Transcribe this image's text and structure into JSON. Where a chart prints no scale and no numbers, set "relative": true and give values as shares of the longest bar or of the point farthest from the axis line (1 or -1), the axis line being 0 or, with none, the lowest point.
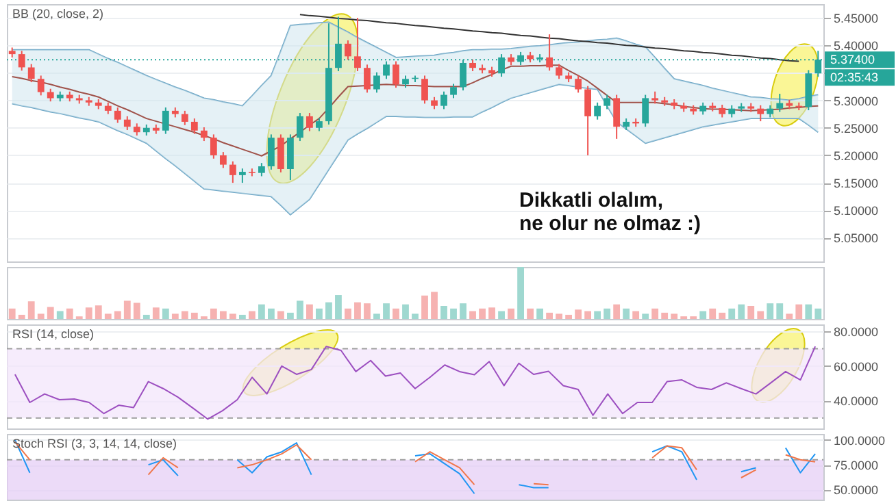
{
  "chart_data": [
    {
      "type": "candlestick",
      "title": "BB (20, close, 2)",
      "categories": [
        null,
        null,
        null,
        null,
        null,
        null,
        null,
        null,
        null,
        null,
        null,
        null,
        null,
        null,
        null,
        null,
        null,
        null,
        null,
        null,
        null,
        null,
        null,
        null,
        null,
        null,
        null,
        null,
        null,
        null,
        null,
        null,
        null,
        null,
        null,
        null,
        null,
        null,
        null,
        null,
        null,
        null,
        null,
        null,
        null,
        null,
        null,
        null,
        null,
        null,
        null,
        null,
        null,
        null,
        null,
        null,
        null,
        null,
        null,
        null,
        null,
        null,
        null,
        null,
        null,
        null,
        null,
        null,
        null,
        null,
        null,
        null,
        null,
        null,
        null,
        null,
        null,
        null,
        null,
        null,
        null,
        null,
        null,
        null,
        null
      ],
      "ohlc": [
        [
          5.39,
          5.396,
          5.378,
          5.384
        ],
        [
          5.384,
          5.39,
          5.354,
          5.36
        ],
        [
          5.36,
          5.366,
          5.333,
          5.339
        ],
        [
          5.339,
          5.345,
          5.309,
          5.315
        ],
        [
          5.315,
          5.321,
          5.298,
          5.304
        ],
        [
          5.304,
          5.316,
          5.298,
          5.31
        ],
        [
          5.31,
          5.316,
          5.298,
          5.304
        ],
        [
          5.304,
          5.31,
          5.294,
          5.3
        ],
        [
          5.3,
          5.306,
          5.29,
          5.296
        ],
        [
          5.296,
          5.302,
          5.284,
          5.29
        ],
        [
          5.29,
          5.296,
          5.275,
          5.281
        ],
        [
          5.281,
          5.287,
          5.259,
          5.265
        ],
        [
          5.265,
          5.271,
          5.246,
          5.252
        ],
        [
          5.252,
          5.258,
          5.236,
          5.242
        ],
        [
          5.242,
          5.256,
          5.236,
          5.25
        ],
        [
          5.25,
          5.256,
          5.239,
          5.245
        ],
        [
          5.245,
          5.287,
          5.239,
          5.281
        ],
        [
          5.281,
          5.287,
          5.269,
          5.275
        ],
        [
          5.275,
          5.281,
          5.255,
          5.261
        ],
        [
          5.261,
          5.267,
          5.239,
          5.245
        ],
        [
          5.245,
          5.251,
          5.226,
          5.232
        ],
        [
          5.232,
          5.238,
          5.194,
          5.2
        ],
        [
          5.2,
          5.206,
          5.177,
          5.183
        ],
        [
          5.183,
          5.189,
          5.15,
          5.164
        ],
        [
          5.164,
          5.176,
          5.15,
          5.17
        ],
        [
          5.17,
          5.176,
          5.162,
          5.168
        ],
        [
          5.168,
          5.186,
          5.162,
          5.18
        ],
        [
          5.18,
          5.238,
          5.174,
          5.232
        ],
        [
          5.232,
          5.238,
          5.169,
          5.175
        ],
        [
          5.175,
          5.238,
          5.155,
          5.232
        ],
        [
          5.232,
          5.277,
          5.226,
          5.271
        ],
        [
          5.271,
          5.277,
          5.244,
          5.25
        ],
        [
          5.25,
          5.268,
          5.244,
          5.262
        ],
        [
          5.262,
          5.44,
          5.256,
          5.359
        ],
        [
          5.359,
          5.452,
          5.353,
          5.403
        ],
        [
          5.403,
          5.409,
          5.374,
          5.38
        ],
        [
          5.38,
          5.45,
          5.353,
          5.359
        ],
        [
          5.359,
          5.365,
          5.314,
          5.32
        ],
        [
          5.32,
          5.351,
          5.314,
          5.345
        ],
        [
          5.345,
          5.371,
          5.339,
          5.365
        ],
        [
          5.365,
          5.371,
          5.323,
          5.329
        ],
        [
          5.329,
          5.345,
          5.323,
          5.339
        ],
        [
          5.339,
          5.345,
          5.333,
          5.341
        ],
        [
          5.339,
          5.345,
          5.294,
          5.3
        ],
        [
          5.3,
          5.306,
          5.284,
          5.29
        ],
        [
          5.29,
          5.316,
          5.284,
          5.31
        ],
        [
          5.31,
          5.33,
          5.304,
          5.324
        ],
        [
          5.324,
          5.374,
          5.318,
          5.368
        ],
        [
          5.368,
          5.374,
          5.353,
          5.359
        ],
        [
          5.359,
          5.365,
          5.349,
          5.355
        ],
        [
          5.355,
          5.361,
          5.343,
          5.349
        ],
        [
          5.349,
          5.384,
          5.343,
          5.378
        ],
        [
          5.378,
          5.384,
          5.364,
          5.37
        ],
        [
          5.37,
          5.388,
          5.364,
          5.382
        ],
        [
          5.382,
          5.388,
          5.369,
          5.375
        ],
        [
          5.375,
          5.384,
          5.369,
          5.378
        ],
        [
          5.378,
          5.42,
          5.354,
          5.36
        ],
        [
          5.36,
          5.366,
          5.339,
          5.345
        ],
        [
          5.345,
          5.351,
          5.333,
          5.339
        ],
        [
          5.339,
          5.345,
          5.314,
          5.32
        ],
        [
          5.32,
          5.326,
          5.2,
          5.271
        ],
        [
          5.271,
          5.296,
          5.265,
          5.29
        ],
        [
          5.29,
          5.31,
          5.284,
          5.304
        ],
        [
          5.304,
          5.31,
          5.23,
          5.252
        ],
        [
          5.252,
          5.267,
          5.246,
          5.261
        ],
        [
          5.261,
          5.267,
          5.252,
          5.258
        ],
        [
          5.258,
          5.31,
          5.252,
          5.304
        ],
        [
          5.304,
          5.316,
          5.294,
          5.3
        ],
        [
          5.3,
          5.306,
          5.29,
          5.296
        ],
        [
          5.296,
          5.302,
          5.284,
          5.29
        ],
        [
          5.29,
          5.296,
          5.279,
          5.285
        ],
        [
          5.285,
          5.291,
          5.274,
          5.28
        ],
        [
          5.28,
          5.296,
          5.274,
          5.29
        ],
        [
          5.29,
          5.296,
          5.28,
          5.286
        ],
        [
          5.286,
          5.292,
          5.269,
          5.275
        ],
        [
          5.275,
          5.291,
          5.269,
          5.285
        ],
        [
          5.285,
          5.295,
          5.279,
          5.289
        ],
        [
          5.289,
          5.295,
          5.279,
          5.285
        ],
        [
          5.285,
          5.291,
          5.262,
          5.275
        ],
        [
          5.275,
          5.291,
          5.269,
          5.285
        ],
        [
          5.285,
          5.312,
          5.279,
          5.295
        ],
        [
          5.295,
          5.301,
          5.284,
          5.29
        ],
        [
          5.29,
          5.296,
          5.282,
          5.288
        ],
        [
          5.288,
          5.355,
          5.282,
          5.349
        ],
        [
          5.349,
          5.39,
          5.343,
          5.374
        ]
      ],
      "colors": [
        "#ef5350",
        "#ef5350",
        "#ef5350",
        "#ef5350",
        "#ef5350",
        "#26a69a",
        "#ef5350",
        "#ef5350",
        "#ef5350",
        "#ef5350",
        "#ef5350",
        "#ef5350",
        "#ef5350",
        "#ef5350",
        "#26a69a",
        "#ef5350",
        "#26a69a",
        "#ef5350",
        "#ef5350",
        "#ef5350",
        "#ef5350",
        "#ef5350",
        "#ef5350",
        "#ef5350",
        "#26a69a",
        "#ef5350",
        "#26a69a",
        "#26a69a",
        "#ef5350",
        "#26a69a",
        "#26a69a",
        "#ef5350",
        "#26a69a",
        "#26a69a",
        "#26a69a",
        "#ef5350",
        "#ef5350",
        "#ef5350",
        "#26a69a",
        "#26a69a",
        "#ef5350",
        "#26a69a",
        "#26a69a",
        "#ef5350",
        "#ef5350",
        "#26a69a",
        "#26a69a",
        "#26a69a",
        "#ef5350",
        "#ef5350",
        "#ef5350",
        "#26a69a",
        "#ef5350",
        "#26a69a",
        "#ef5350",
        "#26a69a",
        "#ef5350",
        "#ef5350",
        "#ef5350",
        "#ef5350",
        "#ef5350",
        "#26a69a",
        "#26a69a",
        "#ef5350",
        "#26a69a",
        "#ef5350",
        "#26a69a",
        "#ef5350",
        "#ef5350",
        "#ef5350",
        "#ef5350",
        "#ef5350",
        "#26a69a",
        "#ef5350",
        "#ef5350",
        "#26a69a",
        "#26a69a",
        "#ef5350",
        "#ef5350",
        "#26a69a",
        "#26a69a",
        "#ef5350",
        "#ef5350",
        "#26a69a",
        "#26a69a"
      ],
      "series": [
        {
          "type": "line",
          "color": "#6ea7c6",
          "values": [
            5.392,
            5.392,
            5.392,
            5.392,
            5.392,
            5.392,
            5.392,
            5.392,
            5.392,
            5.384,
            5.376,
            5.369,
            5.361,
            5.353,
            5.345,
            5.338,
            5.331,
            5.324,
            5.318,
            5.311,
            5.304,
            5.301,
            5.297,
            5.294,
            5.29,
            5.308,
            5.327,
            5.345,
            5.39,
            5.436,
            5.438,
            5.439,
            5.441,
            5.442,
            5.433,
            5.424,
            5.414,
            5.405,
            5.396,
            5.387,
            5.378,
            5.379,
            5.38,
            5.381,
            5.382,
            5.385,
            5.387,
            5.39,
            5.392,
            5.392,
            5.393,
            5.393,
            5.394,
            5.396,
            5.398,
            5.399,
            5.401,
            5.403,
            5.405,
            5.406,
            5.408,
            5.41,
            5.411,
            5.413,
            5.408,
            5.402,
            5.397,
            5.378,
            5.358,
            5.339,
            5.335,
            5.331,
            5.327,
            5.322,
            5.318,
            5.314,
            5.31,
            5.306,
            5.305,
            5.303,
            5.302,
            5.3,
            5.303,
            5.307,
            5.31
          ]
        },
        {
          "type": "line",
          "color": "#6ea7c6",
          "values": [
            5.294,
            5.29,
            5.287,
            5.283,
            5.279,
            5.276,
            5.272,
            5.268,
            5.265,
            5.261,
            5.253,
            5.245,
            5.238,
            5.23,
            5.222,
            5.208,
            5.194,
            5.181,
            5.167,
            5.153,
            5.139,
            5.137,
            5.135,
            5.133,
            5.131,
            5.129,
            5.127,
            5.125,
            5.109,
            5.092,
            5.106,
            5.12,
            5.147,
            5.174,
            5.201,
            5.228,
            5.239,
            5.249,
            5.26,
            5.271,
            5.271,
            5.27,
            5.27,
            5.269,
            5.269,
            5.269,
            5.27,
            5.27,
            5.27,
            5.279,
            5.287,
            5.296,
            5.304,
            5.309,
            5.314,
            5.319,
            5.324,
            5.329,
            5.327,
            5.324,
            5.322,
            5.32,
            5.29,
            5.261,
            5.248,
            5.235,
            5.222,
            5.227,
            5.232,
            5.237,
            5.242,
            5.247,
            5.252,
            5.255,
            5.258,
            5.261,
            5.264,
            5.267,
            5.267,
            5.267,
            5.267,
            5.267,
            5.267,
            5.255,
            5.242
          ]
        },
        {
          "type": "line",
          "color": "#a0524a",
          "values": [
            5.343,
            5.34,
            5.336,
            5.333,
            5.329,
            5.324,
            5.32,
            5.315,
            5.311,
            5.306,
            5.298,
            5.29,
            5.283,
            5.275,
            5.267,
            5.262,
            5.257,
            5.252,
            5.247,
            5.242,
            5.236,
            5.23,
            5.223,
            5.217,
            5.211,
            5.205,
            5.199,
            5.208,
            5.217,
            5.23,
            5.242,
            5.255,
            5.267,
            5.286,
            5.306,
            5.325,
            5.326,
            5.327,
            5.328,
            5.329,
            5.328,
            5.327,
            5.327,
            5.326,
            5.325,
            5.325,
            5.325,
            5.325,
            5.332,
            5.34,
            5.347,
            5.355,
            5.362,
            5.362,
            5.363,
            5.363,
            5.364,
            5.364,
            5.354,
            5.345,
            5.335,
            5.322,
            5.309,
            5.296,
            5.296,
            5.296,
            5.296,
            5.296,
            5.294,
            5.292,
            5.289,
            5.287,
            5.285,
            5.284,
            5.284,
            5.283,
            5.282,
            5.281,
            5.282,
            5.283,
            5.284,
            5.286,
            5.287,
            5.289,
            5.29
          ],
          "lower": [
            5.294,
            5.29,
            5.287,
            5.283,
            5.279,
            5.276,
            5.272,
            5.268,
            5.265,
            5.261,
            5.253,
            5.245,
            5.238,
            5.23,
            5.222,
            5.208,
            5.194,
            5.181,
            5.167,
            5.153,
            5.139,
            5.137,
            5.135,
            5.133,
            5.131,
            5.129,
            5.127,
            5.125,
            5.109,
            5.092,
            5.106,
            5.12,
            5.147,
            5.174,
            5.201,
            5.228,
            5.239,
            5.249,
            5.26,
            5.271,
            5.271,
            5.27,
            5.27,
            5.269,
            5.269,
            5.269,
            5.27,
            5.27,
            5.27,
            5.279,
            5.287,
            5.296,
            5.304,
            5.309,
            5.314,
            5.319,
            5.324,
            5.329,
            5.327,
            5.324,
            5.322,
            5.32,
            5.29,
            5.261,
            5.248,
            5.235,
            5.222,
            5.227,
            5.232,
            5.237,
            5.242,
            5.247,
            5.252,
            5.255,
            5.258,
            5.261,
            5.264,
            5.267,
            5.267,
            5.267,
            5.267,
            5.267,
            5.267,
            5.255,
            5.242
          ],
          "upper": [
            5.392,
            5.392,
            5.392,
            5.392,
            5.392,
            5.392,
            5.392,
            5.392,
            5.392,
            5.384,
            5.376,
            5.369,
            5.361,
            5.353,
            5.345,
            5.338,
            5.331,
            5.324,
            5.318,
            5.311,
            5.304,
            5.301,
            5.297,
            5.294,
            5.29,
            5.308,
            5.327,
            5.345,
            5.39,
            5.436,
            5.438,
            5.439,
            5.441,
            5.442,
            5.433,
            5.424,
            5.414,
            5.405,
            5.396,
            5.387,
            5.378,
            5.379,
            5.38,
            5.381,
            5.382,
            5.385,
            5.387,
            5.39,
            5.392,
            5.392,
            5.393,
            5.393,
            5.394,
            5.396,
            5.398,
            5.399,
            5.401,
            5.403,
            5.405,
            5.406,
            5.408,
            5.41,
            5.411,
            5.413,
            5.408,
            5.402,
            5.397,
            5.378,
            5.358,
            5.339,
            5.335,
            5.331,
            5.327,
            5.322,
            5.318,
            5.314,
            5.31,
            5.306,
            5.305,
            5.303,
            5.302,
            5.3,
            5.303,
            5.307,
            5.31
          ]
        },
        {
          "type": "line",
          "color": "#333333",
          "values": [
            null,
            null,
            null,
            null,
            null,
            null,
            null,
            null,
            null,
            null,
            null,
            null,
            null,
            null,
            null,
            null,
            null,
            null,
            null,
            null,
            null,
            null,
            null,
            null,
            null,
            null,
            null,
            null,
            null,
            null,
            5.456,
            5.454,
            5.453,
            5.451,
            5.449,
            5.448,
            5.446,
            5.445,
            5.443,
            5.441,
            5.44,
            5.438,
            5.436,
            5.435,
            5.433,
            5.431,
            5.43,
            5.428,
            5.426,
            5.425,
            5.423,
            5.422,
            5.42,
            5.418,
            5.417,
            5.415,
            5.413,
            5.412,
            5.41,
            5.408,
            5.407,
            5.405,
            5.404,
            5.402,
            5.4,
            5.399,
            5.397,
            5.395,
            5.394,
            5.392,
            5.39,
            5.389,
            5.387,
            5.386,
            5.384,
            5.382,
            5.381,
            5.379,
            5.377,
            5.376,
            5.374,
            5.372,
            5.371,
            null,
            null
          ]
        }
      ],
      "ylim": [
        5.007,
        5.475
      ],
      "yticks": [
        {
          "value": 5.05,
          "label": "5.05000"
        },
        {
          "value": 5.1,
          "label": "5.10000"
        },
        {
          "value": 5.15,
          "label": "5.15000"
        },
        {
          "value": 5.2,
          "label": "5.20000"
        },
        {
          "value": 5.25,
          "label": "5.25000"
        },
        {
          "value": 5.3,
          "label": "5.30000"
        },
        {
          "value": 5.35,
          "label": null
        },
        {
          "value": 5.4,
          "label": "5.40000"
        },
        {
          "value": 5.45,
          "label": "5.45000"
        }
      ],
      "ref_lines": [
        {
          "axis": "y",
          "value": 5.374,
          "label": "5.37400",
          "color": "#26a69a",
          "line_style": "dotted"
        }
      ],
      "annotations": [
        "Dikkatli olalım,\nne olur ne olmaz :)",
        "02:35:43"
      ],
      "grid": "y",
      "tick_labels": "y"
    },
    {
      "type": "bar",
      "relative": true,
      "tick_labels": false,
      "categories": [
        null,
        null,
        null,
        null,
        null,
        null,
        null,
        null,
        null,
        null,
        null,
        null,
        null,
        null,
        null,
        null,
        null,
        null,
        null,
        null,
        null,
        null,
        null,
        null,
        null,
        null,
        null,
        null,
        null,
        null,
        null,
        null,
        null,
        null,
        null,
        null,
        null,
        null,
        null,
        null,
        null,
        null,
        null,
        null,
        null,
        null,
        null,
        null,
        null,
        null,
        null,
        null,
        null,
        null,
        null,
        null,
        null,
        null,
        null,
        null,
        null,
        null,
        null,
        null,
        null,
        null,
        null,
        null,
        null,
        null,
        null,
        null,
        null,
        null,
        null,
        null,
        null,
        null,
        null,
        null,
        null,
        null,
        null,
        null,
        null
      ],
      "values": [
        0.2,
        0.08,
        0.34,
        0.1,
        0.23,
        0.15,
        0.2,
        0.05,
        0.22,
        0.26,
        0.1,
        0.15,
        0.35,
        0.31,
        0.08,
        0.22,
        0.2,
        0.1,
        0.15,
        0.12,
        0.05,
        0.2,
        0.15,
        0.1,
        0.08,
        0.15,
        0.28,
        0.2,
        0.15,
        0.12,
        0.35,
        0.28,
        0.2,
        0.32,
        0.46,
        0.2,
        0.32,
        0.3,
        0.1,
        0.3,
        0.2,
        0.28,
        0.1,
        0.45,
        0.52,
        0.25,
        0.2,
        0.3,
        0.15,
        0.2,
        0.22,
        0.15,
        0.2,
        1,
        0.2,
        0.2,
        0.12,
        0.1,
        0.08,
        0.18,
        0.15,
        0.15,
        0.2,
        0.28,
        0.2,
        0.15,
        0.1,
        0.2,
        0.12,
        0.1,
        0.05,
        0.05,
        0.15,
        0.2,
        0.12,
        0.2,
        0.28,
        0.25,
        0.15,
        0.3,
        0.3,
        0.1,
        0.28,
        0.28,
        0.2
      ],
      "colors": [
        "#f6b2b1",
        "#f6b2b1",
        "#f6b2b1",
        "#f6b2b1",
        "#f6b2b1",
        "#9fd8d0",
        "#f6b2b1",
        "#f6b2b1",
        "#f6b2b1",
        "#f6b2b1",
        "#f6b2b1",
        "#f6b2b1",
        "#f6b2b1",
        "#f6b2b1",
        "#9fd8d0",
        "#f6b2b1",
        "#9fd8d0",
        "#f6b2b1",
        "#f6b2b1",
        "#f6b2b1",
        "#f6b2b1",
        "#f6b2b1",
        "#f6b2b1",
        "#f6b2b1",
        "#9fd8d0",
        "#f6b2b1",
        "#9fd8d0",
        "#9fd8d0",
        "#f6b2b1",
        "#9fd8d0",
        "#9fd8d0",
        "#f6b2b1",
        "#9fd8d0",
        "#9fd8d0",
        "#9fd8d0",
        "#f6b2b1",
        "#f6b2b1",
        "#f6b2b1",
        "#9fd8d0",
        "#9fd8d0",
        "#f6b2b1",
        "#9fd8d0",
        "#9fd8d0",
        "#f6b2b1",
        "#f6b2b1",
        "#9fd8d0",
        "#9fd8d0",
        "#9fd8d0",
        "#f6b2b1",
        "#f6b2b1",
        "#f6b2b1",
        "#9fd8d0",
        "#f6b2b1",
        "#9fd8d0",
        "#f6b2b1",
        "#9fd8d0",
        "#f6b2b1",
        "#f6b2b1",
        "#f6b2b1",
        "#f6b2b1",
        "#f6b2b1",
        "#9fd8d0",
        "#9fd8d0",
        "#f6b2b1",
        "#9fd8d0",
        "#f6b2b1",
        "#9fd8d0",
        "#f6b2b1",
        "#f6b2b1",
        "#f6b2b1",
        "#f6b2b1",
        "#f6b2b1",
        "#9fd8d0",
        "#f6b2b1",
        "#f6b2b1",
        "#9fd8d0",
        "#9fd8d0",
        "#f6b2b1",
        "#f6b2b1",
        "#9fd8d0",
        "#9fd8d0",
        "#f6b2b1",
        "#f6b2b1",
        "#9fd8d0",
        "#9fd8d0"
      ]
    },
    {
      "type": "line",
      "title": "RSI (14, close)",
      "categories": [
        null,
        null,
        null,
        null,
        null,
        null,
        null,
        null,
        null,
        null,
        null,
        null,
        null,
        null,
        null,
        null,
        null,
        null,
        null,
        null,
        null,
        null,
        null,
        null,
        null,
        null,
        null,
        null,
        null,
        null,
        null,
        null,
        null,
        null,
        null,
        null,
        null,
        null,
        null,
        null,
        null,
        null,
        null,
        null,
        null,
        null,
        null,
        null,
        null,
        null,
        null,
        null,
        null,
        null,
        null
      ],
      "series": [
        {
          "color": "#9c4fc0",
          "values": [
            55.2,
            39,
            43.9,
            40.6,
            41,
            39,
            32.6,
            37.4,
            36,
            51,
            47,
            42,
            35.8,
            29.4,
            34.2,
            40.6,
            53.5,
            43.9,
            60,
            55.2,
            58,
            71.3,
            69,
            56.8,
            63.2,
            54.2,
            56,
            47,
            53.5,
            60.6,
            56.8,
            55,
            62.6,
            48.7,
            61.6,
            55.2,
            57,
            48.7,
            46.5,
            31.6,
            43.9,
            32.6,
            39,
            39,
            51,
            52,
            47.7,
            46.5,
            50.3,
            47,
            43.9,
            50.3,
            56.8,
            52,
            71.3
          ]
        }
      ],
      "ylim": [
        24,
        84
      ],
      "yticks": [
        {
          "value": 40,
          "label": "40.0000"
        },
        {
          "value": 60,
          "label": "60.0000"
        },
        {
          "value": 80,
          "label": "80.0000"
        }
      ],
      "bands": [
        {
          "axis": "y",
          "from": 30,
          "to": 70,
          "color": "#f3e6fb"
        }
      ],
      "ref_lines": [
        {
          "axis": "y",
          "value": 70,
          "color": "#9e9e9e",
          "line_style": "dashed"
        },
        {
          "axis": "y",
          "value": 30,
          "color": "#9e9e9e",
          "line_style": "dashed"
        }
      ],
      "grid": "y",
      "tick_labels": "y"
    },
    {
      "type": "line",
      "title": "Stoch RSI (3, 3, 14, 14, close)",
      "categories": [
        null,
        null,
        null,
        null,
        null,
        null,
        null,
        null,
        null,
        null,
        null,
        null,
        null,
        null,
        null,
        null,
        null,
        null,
        null,
        null,
        null,
        null,
        null,
        null,
        null,
        null,
        null,
        null,
        null,
        null,
        null,
        null,
        null,
        null,
        null,
        null,
        null,
        null,
        null,
        null,
        null,
        null,
        null,
        null,
        null,
        null,
        null,
        null,
        null,
        null,
        null,
        null,
        null,
        null,
        null
      ],
      "series": [
        {
          "color": "#2196f3",
          "values": [
            100,
            67,
            null,
            null,
            null,
            null,
            null,
            null,
            null,
            75,
            80,
            64,
            null,
            null,
            null,
            80,
            67,
            83,
            88,
            97,
            65,
            null,
            null,
            null,
            null,
            null,
            null,
            84,
            86,
            76,
            66,
            46,
            null,
            null,
            55,
            52,
            52,
            null,
            null,
            null,
            null,
            null,
            null,
            88,
            94,
            88,
            60,
            null,
            null,
            68,
            72,
            null,
            92,
            67,
            86
          ]
        },
        {
          "color": "#f0764a",
          "values": [
            98,
            80,
            null,
            null,
            null,
            null,
            null,
            null,
            null,
            65,
            82,
            72,
            null,
            null,
            null,
            72,
            75,
            80,
            86,
            95,
            80,
            null,
            null,
            null,
            null,
            null,
            null,
            78,
            88,
            80,
            72,
            55,
            null,
            null,
            null,
            56,
            55,
            null,
            null,
            null,
            null,
            null,
            null,
            82,
            94,
            92,
            70,
            null,
            null,
            62,
            70,
            null,
            85,
            80,
            78
          ]
        }
      ],
      "ylim": [
        40,
        106
      ],
      "yticks": [
        {
          "value": 50,
          "label": "50.0000"
        },
        {
          "value": 75,
          "label": "75.0000"
        },
        {
          "value": 100,
          "label": "100.0000"
        }
      ],
      "bands": [
        {
          "axis": "y",
          "from": 40,
          "to": 80,
          "color": "#e6cff6"
        }
      ],
      "ref_lines": [
        {
          "axis": "y",
          "value": 80,
          "color": "#9e9e9e",
          "line_style": "dashed"
        }
      ],
      "grid": "y",
      "tick_labels": "y"
    }
  ]
}
